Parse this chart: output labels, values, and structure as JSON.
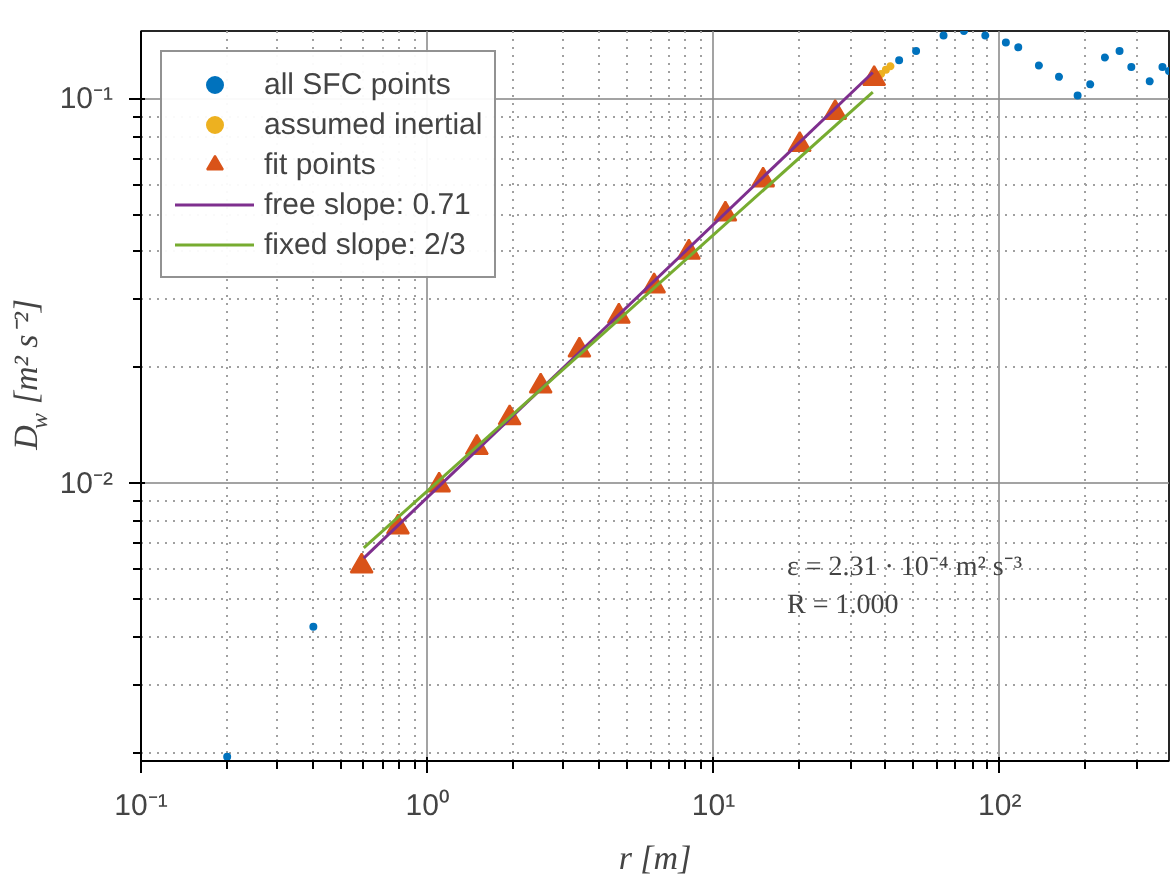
{
  "chart_data": {
    "type": "scatter",
    "xlabel": "r [m]",
    "ylabel": "D$_{w}$ [m² s⁻²]",
    "log": "xy",
    "grid": true,
    "legend": "top left",
    "xlim": [
      0.1,
      390
    ],
    "ylim": [
      0.0019,
      0.15
    ],
    "xticks": [
      {
        "value": 0.1,
        "label": "10⁻¹"
      },
      {
        "value": 1,
        "label": "10⁰"
      },
      {
        "value": 10,
        "label": "10¹"
      },
      {
        "value": 100,
        "label": "10²"
      }
    ],
    "yticks": [
      {
        "value": 0.01,
        "label": "10⁻²"
      },
      {
        "value": 0.1,
        "label": "10⁻¹"
      }
    ],
    "series": [
      {
        "name": "all SFC points",
        "type": "scatter",
        "marker": "circle",
        "color": "#0072bd",
        "x": [
          0.2,
          0.4,
          44.5,
          51,
          63.6,
          75,
          89,
          105,
          116,
          137,
          161,
          187,
          207,
          233,
          262,
          288,
          334,
          370,
          390
        ],
        "values": [
          0.00195,
          0.00424,
          0.126,
          0.133,
          0.146,
          0.15,
          0.146,
          0.14,
          0.136,
          0.122,
          0.114,
          0.102,
          0.109,
          0.128,
          0.133,
          0.121,
          0.111,
          0.121,
          0.118
        ]
      },
      {
        "name": "assumed inertial",
        "type": "scatter",
        "marker": "circle",
        "color": "#edb120",
        "x": [
          38.5,
          40,
          41.5
        ],
        "values": [
          0.116,
          0.119,
          0.1215
        ]
      },
      {
        "name": "fit points",
        "type": "scatter",
        "marker": "triangle",
        "color": "#d95319",
        "x": [
          0.59,
          0.79,
          1.1,
          1.49,
          1.94,
          2.49,
          3.4,
          4.67,
          6.2,
          8.2,
          11.0,
          14.9,
          20.0,
          26.6,
          36.4
        ],
        "values": [
          0.0061,
          0.0077,
          0.0099,
          0.0124,
          0.0148,
          0.0179,
          0.0222,
          0.0272,
          0.0326,
          0.0399,
          0.0501,
          0.0614,
          0.076,
          0.092,
          0.1127
        ]
      },
      {
        "name": "free slope: 0.71",
        "type": "line",
        "line_style": "solid",
        "color": "#7e2f8e",
        "x": [
          0.6,
          36
        ],
        "values": [
          0.0064,
          0.117
        ]
      },
      {
        "name": "fixed slope: 2/3",
        "type": "line",
        "line_style": "solid",
        "color": "#77ac30",
        "x": [
          0.6,
          36
        ],
        "values": [
          0.0068,
          0.104
        ]
      }
    ],
    "annotations": [
      "ε = 2.31 · 10⁻⁴ m² s⁻³",
      "R = 1.000"
    ]
  }
}
